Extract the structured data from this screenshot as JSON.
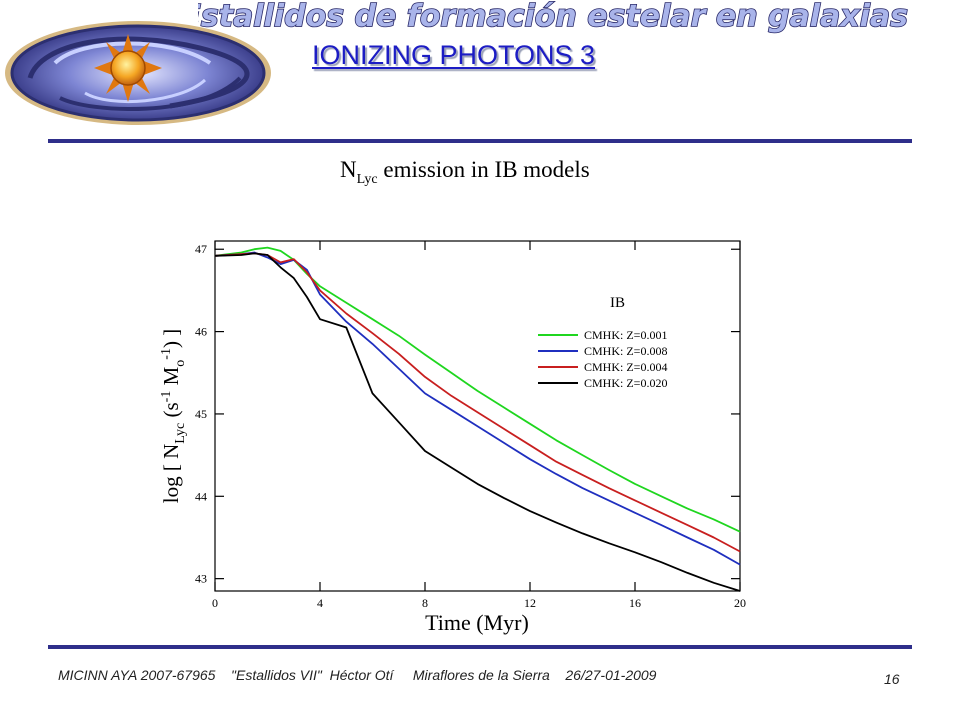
{
  "header": {
    "banner_text": "Estallidos de formación estelar en galaxias",
    "title": "IONIZING PHOTONS 3"
  },
  "footer": {
    "text": "MICINN AYA 2007-67965    \"Estallidos VII\"  Héctor Otí     Miraflores de la Sierra    26/27-01-2009",
    "page_number": "16"
  },
  "colors": {
    "rule": "#2e2e8a",
    "title": "#1c1cc4",
    "banner_fill": "#a9b4ea",
    "banner_stroke": "#2a2a6a"
  },
  "icons": {
    "logo": "spiral-galaxy-with-sun-icon"
  },
  "chart_data": {
    "type": "line",
    "title_main": "N",
    "title_sub": "Lyc",
    "title_rest": " emission in IB models",
    "xlabel": "Time (Myr)",
    "ylabel_parts": [
      "log [ N",
      "Lyc",
      " (s",
      "-1",
      " M",
      "o",
      "-1",
      ") ]"
    ],
    "xlim": [
      0,
      20
    ],
    "ylim": [
      42.85,
      47.1
    ],
    "xticks": [
      0,
      4,
      8,
      12,
      16,
      20
    ],
    "yticks": [
      43,
      44,
      45,
      46,
      47
    ],
    "grid": false,
    "legend_title": "IB",
    "legend_position": "right",
    "x": [
      0,
      1,
      1.5,
      2,
      2.5,
      3,
      3.5,
      4,
      5,
      6,
      7,
      8,
      9,
      10,
      11,
      12,
      13,
      14,
      15,
      16,
      17,
      18,
      19,
      20
    ],
    "series": [
      {
        "name": "CMHK: Z=0.001",
        "color": "#1fd61f",
        "values": [
          46.92,
          46.96,
          47.0,
          47.02,
          46.98,
          46.87,
          46.7,
          46.55,
          46.35,
          46.15,
          45.95,
          45.72,
          45.5,
          45.28,
          45.08,
          44.88,
          44.68,
          44.5,
          44.32,
          44.15,
          44.0,
          43.85,
          43.72,
          43.57
        ]
      },
      {
        "name": "CMHK: Z=0.008",
        "color": "#1f2fbf",
        "values": [
          46.92,
          46.94,
          46.96,
          46.9,
          46.82,
          46.87,
          46.75,
          46.45,
          46.12,
          45.85,
          45.55,
          45.25,
          45.05,
          44.85,
          44.65,
          44.45,
          44.27,
          44.1,
          43.95,
          43.8,
          43.65,
          43.5,
          43.35,
          43.17
        ]
      },
      {
        "name": "CMHK: Z=0.004",
        "color": "#c81f1f",
        "values": [
          46.92,
          46.94,
          46.95,
          46.93,
          46.84,
          46.88,
          46.72,
          46.5,
          46.22,
          45.98,
          45.73,
          45.45,
          45.22,
          45.02,
          44.82,
          44.62,
          44.42,
          44.26,
          44.1,
          43.95,
          43.8,
          43.65,
          43.5,
          43.33
        ]
      },
      {
        "name": "CMHK: Z=0.020",
        "color": "#000000",
        "values": [
          46.92,
          46.93,
          46.95,
          46.93,
          46.78,
          46.65,
          46.42,
          46.15,
          46.05,
          45.25,
          44.9,
          44.55,
          44.35,
          44.15,
          43.98,
          43.82,
          43.68,
          43.55,
          43.43,
          43.32,
          43.2,
          43.07,
          42.95,
          42.85
        ]
      }
    ]
  }
}
